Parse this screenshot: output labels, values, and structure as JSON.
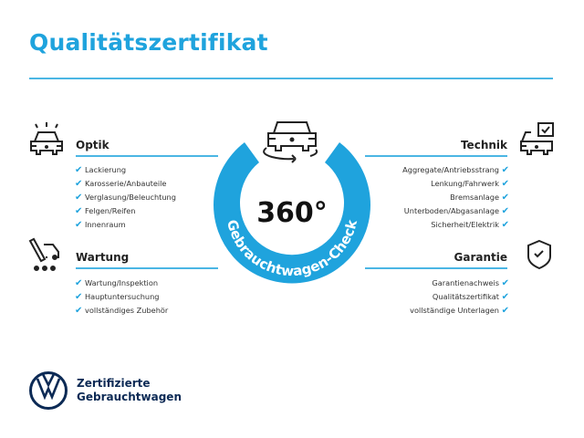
{
  "title": "Qualitätszertifikat",
  "accent_color": "#1fa3dd",
  "center": {
    "number": "360°",
    "ring_text": "Gebrauchtwagen-Check",
    "icon": "car-rotate-icon"
  },
  "sections": {
    "optik": {
      "title": "Optik",
      "icon": "car-lights-icon",
      "items": [
        "Lackierung",
        "Karosserie/Anbauteile",
        "Verglasung/Beleuchtung",
        "Felgen/Reifen",
        "Innenraum"
      ]
    },
    "wartung": {
      "title": "Wartung",
      "icon": "service-truck-icon",
      "items": [
        "Wartung/Inspektion",
        "Hauptuntersuchung",
        "vollständiges Zubehör"
      ]
    },
    "technik": {
      "title": "Technik",
      "icon": "car-checkbox-icon",
      "items": [
        "Aggregate/Antriebsstrang",
        "Lenkung/Fahrwerk",
        "Bremsanlage",
        "Unterboden/Abgasanlage",
        "Sicherheit/Elektrik"
      ]
    },
    "garantie": {
      "title": "Garantie",
      "icon": "shield-check-icon",
      "items": [
        "Garantienachweis",
        "Qualitätszertifikat",
        "vollständige Unterlagen"
      ]
    }
  },
  "check_glyph": "✔",
  "brand": {
    "line1": "Zertifizierte",
    "line2": "Gebrauchtwagen",
    "logo": "vw-logo"
  }
}
